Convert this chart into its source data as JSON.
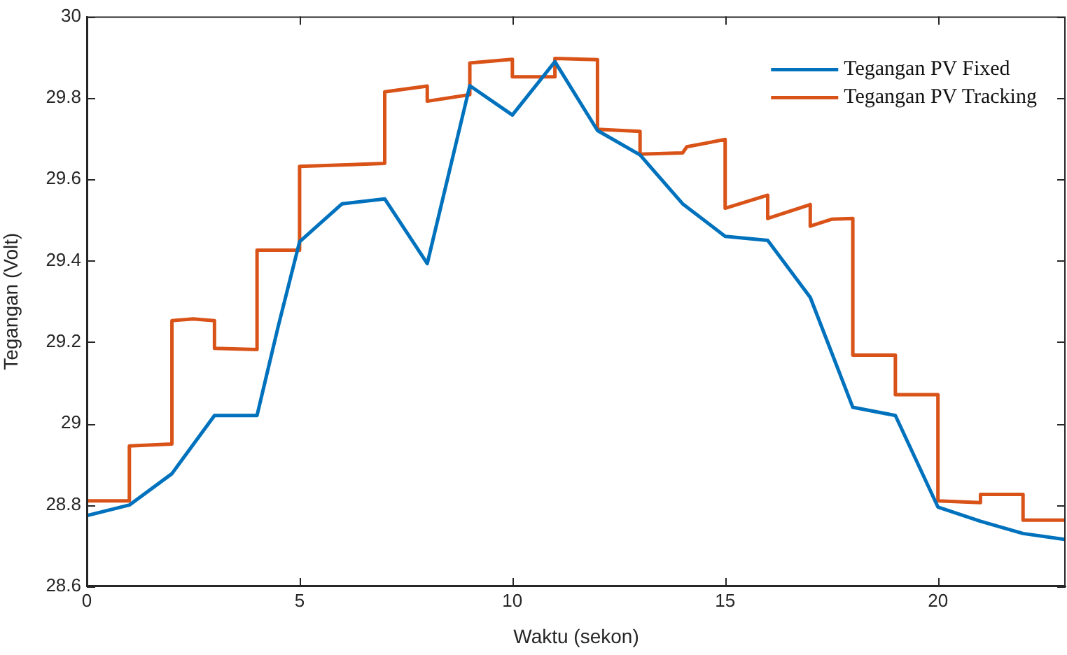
{
  "chart_data": {
    "type": "line",
    "xlabel": "Waktu (sekon)",
    "ylabel": "Tegangan (Volt)",
    "xlim": [
      0,
      23
    ],
    "xticks": [
      0,
      5,
      10,
      15,
      20
    ],
    "ylim": [
      28.6,
      30
    ],
    "yticks": [
      28.6,
      28.8,
      29,
      29.2,
      29.4,
      29.6,
      29.8,
      30
    ],
    "grid": false,
    "legend": "top right",
    "marker": "none",
    "line_style": "solid",
    "series": [
      {
        "name": "Tegangan PV Fixed",
        "color": "#0072bd",
        "x": [
          0,
          1,
          2,
          3,
          4,
          4.5,
          5,
          6,
          7,
          8,
          9,
          10,
          11,
          12,
          13,
          14,
          15,
          16,
          17,
          18,
          19,
          20,
          21,
          22,
          23
        ],
        "values": [
          28.774,
          28.8,
          28.877,
          29.02,
          29.02,
          29.24,
          29.447,
          29.54,
          29.552,
          29.393,
          29.83,
          29.758,
          29.889,
          29.72,
          29.66,
          29.54,
          29.46,
          29.45,
          29.31,
          29.04,
          29.02,
          28.795,
          28.76,
          28.73,
          28.715
        ]
      },
      {
        "name": "Tegangan PV Tracking",
        "color": "#d95319",
        "x": [
          0,
          1,
          1,
          2,
          2,
          2.5,
          3,
          3,
          4,
          4,
          5,
          5,
          7,
          7,
          8,
          8,
          9,
          9,
          10,
          10,
          11,
          11,
          12,
          12,
          13,
          13,
          14,
          14.1,
          15,
          15,
          16,
          16,
          17,
          17,
          17.5,
          18,
          18,
          19,
          19,
          20,
          20,
          21,
          21,
          22,
          22,
          23
        ],
        "values": [
          28.81,
          28.81,
          28.945,
          28.95,
          29.253,
          29.257,
          29.253,
          29.185,
          29.182,
          29.426,
          29.426,
          29.632,
          29.639,
          29.815,
          29.829,
          29.792,
          29.808,
          29.886,
          29.895,
          29.852,
          29.852,
          29.897,
          29.894,
          29.723,
          29.718,
          29.662,
          29.665,
          29.68,
          29.698,
          29.529,
          29.561,
          29.504,
          29.538,
          29.485,
          29.502,
          29.504,
          29.168,
          29.168,
          29.071,
          29.071,
          28.81,
          28.806,
          28.826,
          28.826,
          28.763,
          28.763
        ]
      }
    ]
  }
}
